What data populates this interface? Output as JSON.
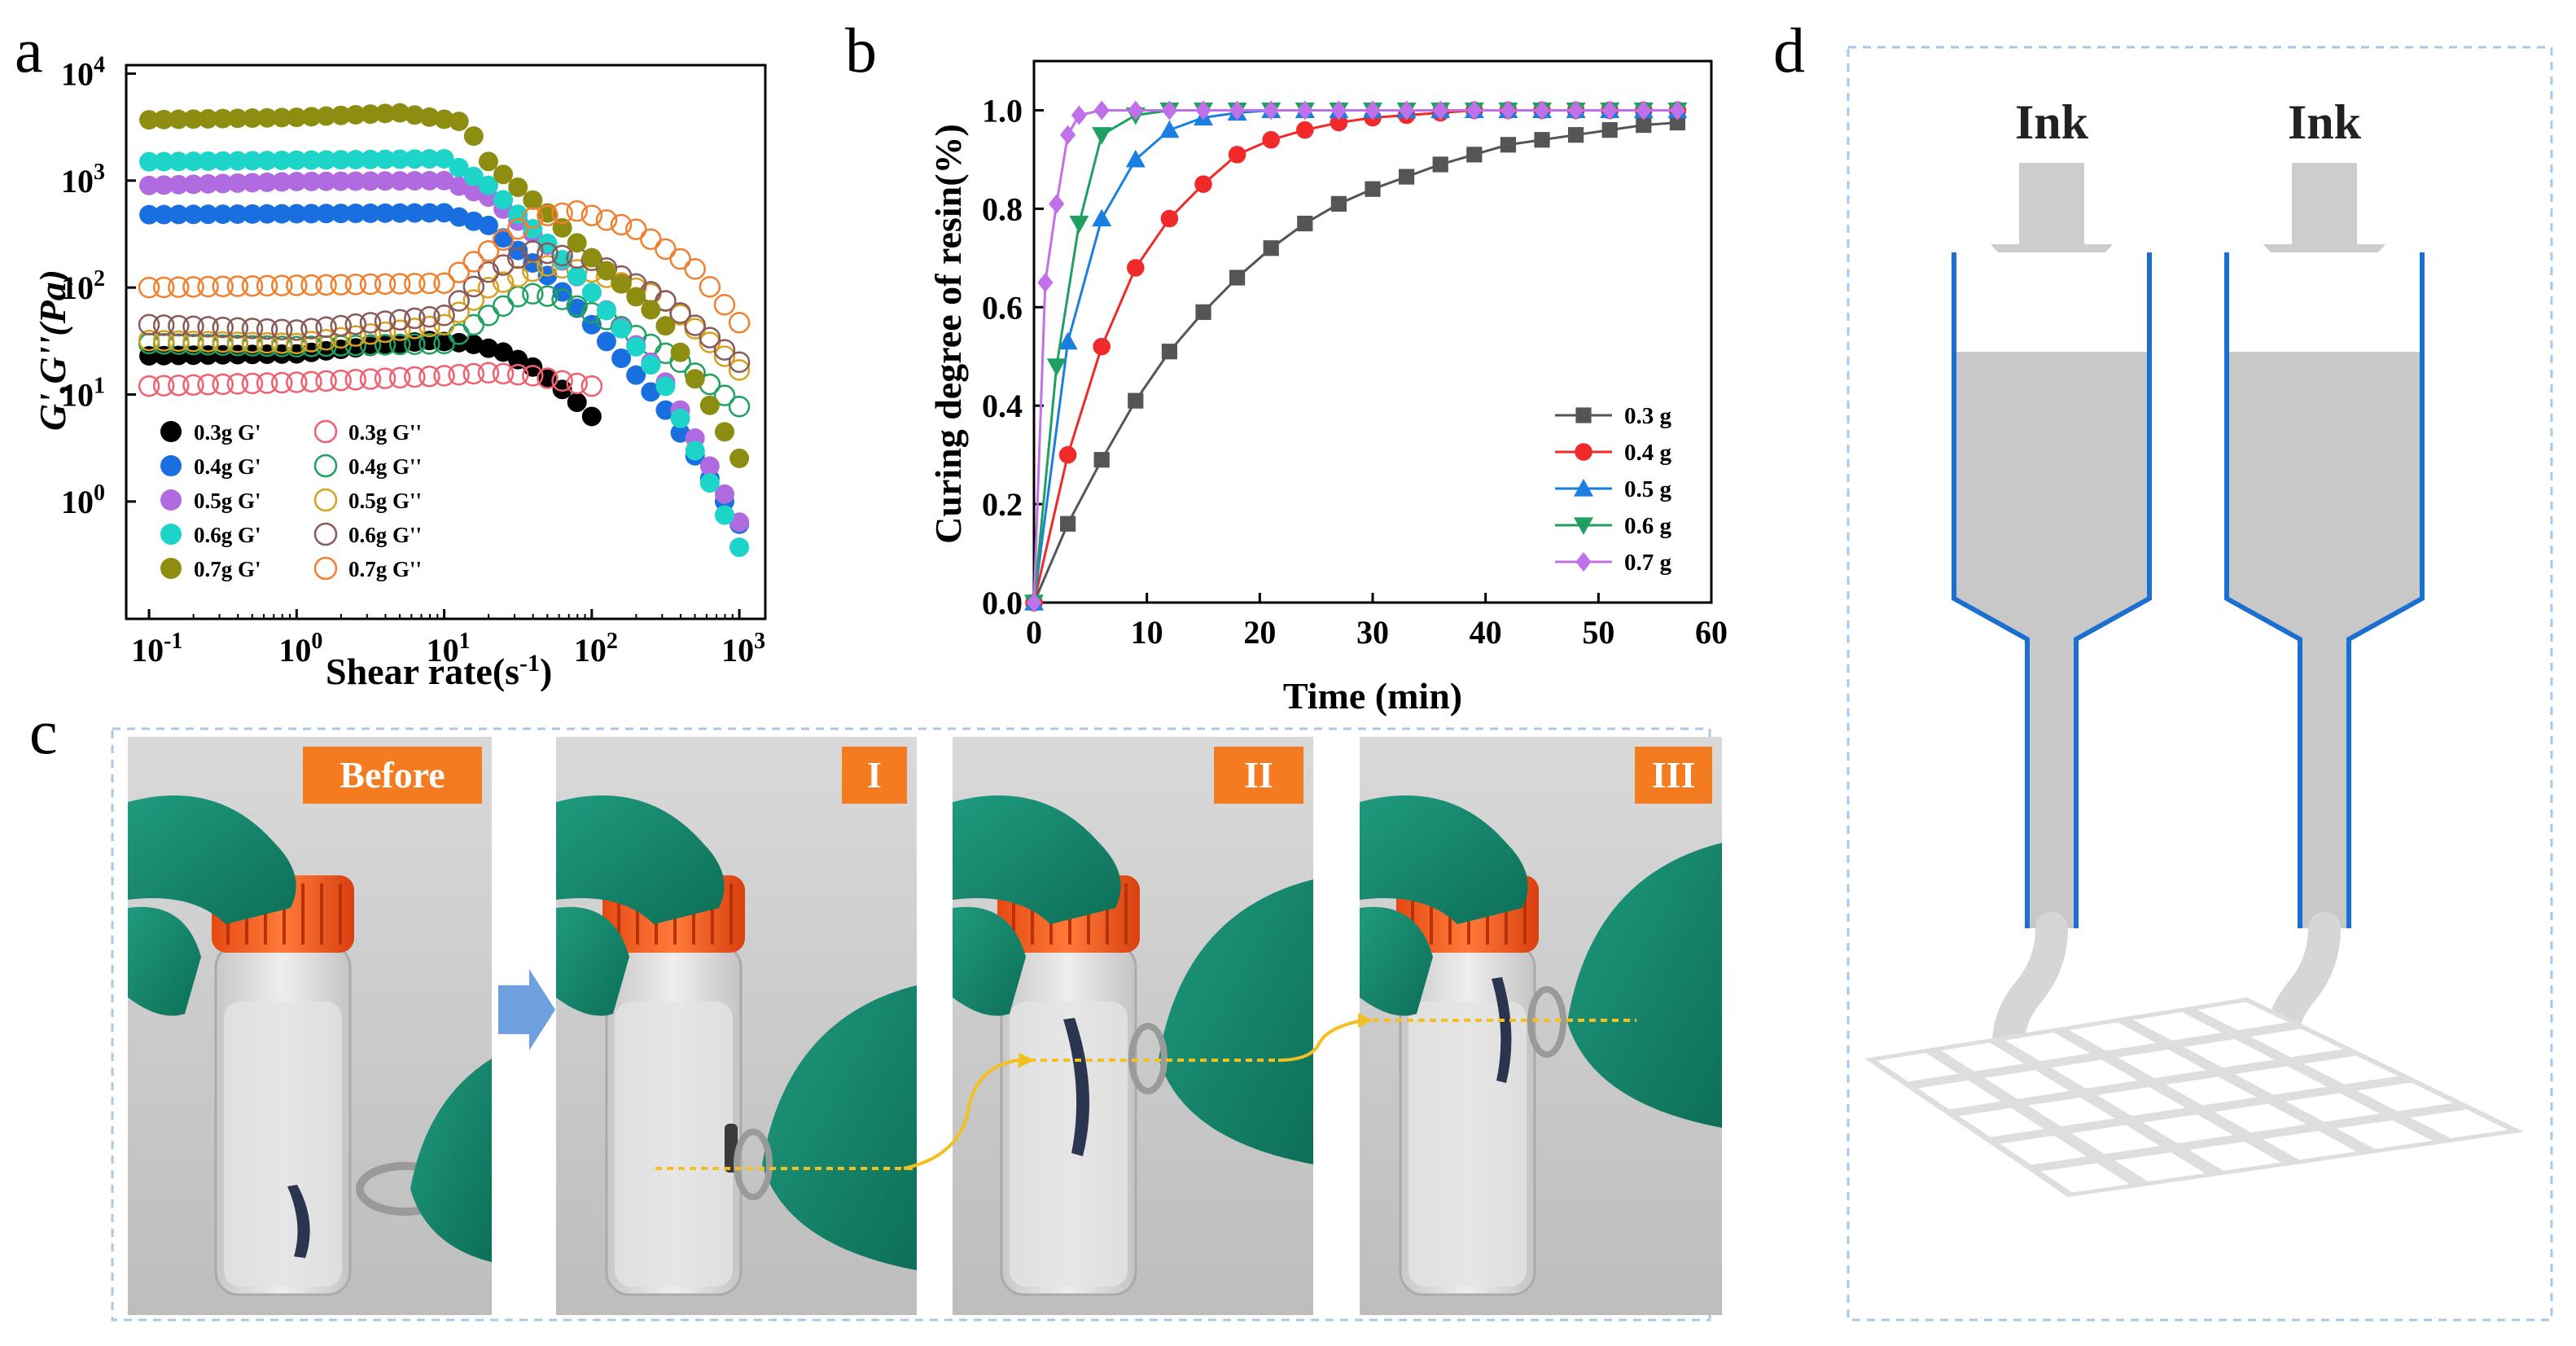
{
  "panel_labels": {
    "a": "a",
    "b": "b",
    "c": "c",
    "d": "d"
  },
  "colors": {
    "G03": "#000000",
    "G04": "#1a6fe0",
    "G05": "#b06be0",
    "G06": "#1cd5c8",
    "G07": "#8d8d12",
    "H03": "#f06070",
    "H04": "#20a060",
    "H05": "#d8a020",
    "H06": "#8a5a5a",
    "H07": "#f08030",
    "c03": "#555555",
    "c04": "#f02a2a",
    "c05": "#1a7fe0",
    "c06": "#20a060",
    "c07": "#c070e8",
    "tag": "#f47b20",
    "arrow_blue": "#6fa0e0",
    "dash_yellow": "#f2c020",
    "nozzle_blue": "#1a6fd0",
    "dash_border": "#a8c8e8"
  },
  "chart_data": [
    {
      "id": "a",
      "type": "scatter",
      "xscale": "log",
      "yscale": "log",
      "xlabel_main": "Shear rate(s",
      "xlabel_sup": "-1",
      "xlabel_end": ")",
      "ylabel": "G',G''(Pa)",
      "xlim": [
        0.07,
        1500
      ],
      "ylim": [
        0.08,
        12000
      ],
      "xticks": [
        {
          "v": 0.1,
          "base": "10",
          "exp": "-1"
        },
        {
          "v": 1,
          "base": "10",
          "exp": "0"
        },
        {
          "v": 10,
          "base": "10",
          "exp": "1"
        },
        {
          "v": 100,
          "base": "10",
          "exp": "2"
        },
        {
          "v": 1000,
          "base": "10",
          "exp": "3"
        }
      ],
      "yticks": [
        {
          "v": 1,
          "base": "10",
          "exp": "0"
        },
        {
          "v": 10,
          "base": "10",
          "exp": "1"
        },
        {
          "v": 100,
          "base": "10",
          "exp": "2"
        },
        {
          "v": 1000,
          "base": "10",
          "exp": "3"
        },
        {
          "v": 10000,
          "base": "10",
          "exp": "4"
        }
      ],
      "series": [
        {
          "key": "G03",
          "name": "0.3g G'",
          "filled": true,
          "xmin": 0.1,
          "xmax": 110,
          "pts": [
            [
              0.1,
              23
            ],
            [
              1,
              24
            ],
            [
              3,
              28
            ],
            [
              8,
              32
            ],
            [
              15,
              30
            ],
            [
              25,
              25
            ],
            [
              40,
              18
            ],
            [
              70,
              10
            ],
            [
              110,
              5.5
            ]
          ]
        },
        {
          "key": "H03",
          "name": "0.3g G''",
          "filled": false,
          "xmin": 0.1,
          "xmax": 100,
          "pts": [
            [
              0.1,
              12
            ],
            [
              1,
              13
            ],
            [
              10,
              15
            ],
            [
              20,
              16
            ],
            [
              40,
              15
            ],
            [
              100,
              12
            ]
          ]
        },
        {
          "key": "G04",
          "name": "0.4g G'",
          "filled": true,
          "xmin": 0.1,
          "xmax": 1100,
          "pts": [
            [
              0.1,
              480
            ],
            [
              1,
              490
            ],
            [
              10,
              500
            ],
            [
              20,
              380
            ],
            [
              50,
              130
            ],
            [
              100,
              45
            ],
            [
              300,
              8
            ],
            [
              1100,
              0.5
            ]
          ]
        },
        {
          "key": "H04",
          "name": "0.4g G''",
          "filled": false,
          "xmin": 0.1,
          "xmax": 1100,
          "pts": [
            [
              0.1,
              30
            ],
            [
              1,
              28
            ],
            [
              10,
              30
            ],
            [
              20,
              55
            ],
            [
              35,
              90
            ],
            [
              60,
              80
            ],
            [
              150,
              45
            ],
            [
              400,
              20
            ],
            [
              1100,
              7
            ]
          ]
        },
        {
          "key": "G05",
          "name": "0.5g G'",
          "filled": true,
          "xmin": 0.1,
          "xmax": 1100,
          "pts": [
            [
              0.1,
              900
            ],
            [
              1,
              980
            ],
            [
              10,
              1000
            ],
            [
              20,
              700
            ],
            [
              50,
              250
            ],
            [
              100,
              90
            ],
            [
              300,
              15
            ],
            [
              1100,
              0.5
            ]
          ]
        },
        {
          "key": "H05",
          "name": "0.5g G''",
          "filled": false,
          "xmin": 0.1,
          "xmax": 1100,
          "pts": [
            [
              0.1,
              32
            ],
            [
              1,
              30
            ],
            [
              10,
              45
            ],
            [
              20,
              100
            ],
            [
              50,
              160
            ],
            [
              100,
              140
            ],
            [
              300,
              80
            ],
            [
              1100,
              15
            ]
          ]
        },
        {
          "key": "G06",
          "name": "0.6g G'",
          "filled": true,
          "xmin": 0.1,
          "xmax": 1100,
          "pts": [
            [
              0.1,
              1500
            ],
            [
              1,
              1550
            ],
            [
              10,
              1600
            ],
            [
              20,
              900
            ],
            [
              50,
              260
            ],
            [
              100,
              90
            ],
            [
              300,
              14
            ],
            [
              1100,
              0.28
            ]
          ]
        },
        {
          "key": "H06",
          "name": "0.6g G''",
          "filled": false,
          "xmin": 0.1,
          "xmax": 1100,
          "pts": [
            [
              0.1,
              45
            ],
            [
              1,
              40
            ],
            [
              10,
              55
            ],
            [
              20,
              140
            ],
            [
              40,
              220
            ],
            [
              100,
              180
            ],
            [
              300,
              80
            ],
            [
              1100,
              18
            ]
          ]
        },
        {
          "key": "G07",
          "name": "0.7g G'",
          "filled": true,
          "xmin": 0.1,
          "xmax": 1100,
          "pts": [
            [
              0.1,
              3700
            ],
            [
              1,
              3900
            ],
            [
              5,
              4300
            ],
            [
              14,
              3500
            ],
            [
              20,
              1500
            ],
            [
              50,
              500
            ],
            [
              100,
              190
            ],
            [
              300,
              50
            ],
            [
              1100,
              2
            ]
          ]
        },
        {
          "key": "H07",
          "name": "0.7g G''",
          "filled": false,
          "xmin": 0.1,
          "xmax": 1100,
          "pts": [
            [
              0.1,
              100
            ],
            [
              1,
              105
            ],
            [
              10,
              110
            ],
            [
              20,
              220
            ],
            [
              40,
              450
            ],
            [
              80,
              520
            ],
            [
              200,
              350
            ],
            [
              500,
              150
            ],
            [
              1100,
              40
            ]
          ]
        }
      ]
    },
    {
      "id": "b",
      "type": "line",
      "xlabel": "Time (min)",
      "ylabel": "Curing degree of resin(%)",
      "xlim": [
        0,
        60
      ],
      "ylim": [
        0,
        1.1
      ],
      "xticks": [
        0,
        10,
        20,
        30,
        40,
        50,
        60
      ],
      "yticks": [
        0.0,
        0.2,
        0.4,
        0.6,
        0.8,
        1.0
      ],
      "ytick_labels": [
        "0.0",
        "0.2",
        "0.4",
        "0.6",
        "0.8",
        "1.0"
      ],
      "series": [
        {
          "key": "c03",
          "name": "0.3 g",
          "marker": "square",
          "x": [
            0,
            3,
            6,
            9,
            12,
            15,
            18,
            21,
            24,
            27,
            30,
            33,
            36,
            39,
            42,
            45,
            48,
            51,
            54,
            57
          ],
          "y": [
            0,
            0.16,
            0.29,
            0.41,
            0.51,
            0.59,
            0.66,
            0.72,
            0.77,
            0.81,
            0.84,
            0.865,
            0.89,
            0.91,
            0.93,
            0.94,
            0.95,
            0.96,
            0.97,
            0.975
          ]
        },
        {
          "key": "c04",
          "name": "0.4 g",
          "marker": "circle",
          "x": [
            0,
            3,
            6,
            9,
            12,
            15,
            18,
            21,
            24,
            27,
            30,
            33,
            36,
            39,
            42,
            45,
            48,
            51,
            54,
            57
          ],
          "y": [
            0,
            0.3,
            0.52,
            0.68,
            0.78,
            0.85,
            0.91,
            0.94,
            0.96,
            0.975,
            0.985,
            0.99,
            0.995,
            1.0,
            1.0,
            1.0,
            1.0,
            1.0,
            1.0,
            1.0
          ]
        },
        {
          "key": "c05",
          "name": "0.5 g",
          "marker": "triangle-up",
          "x": [
            0,
            3,
            6,
            9,
            12,
            15,
            18,
            21,
            24,
            27,
            30,
            33,
            36,
            39,
            42,
            45,
            48,
            51,
            54,
            57
          ],
          "y": [
            0,
            0.53,
            0.78,
            0.9,
            0.96,
            0.985,
            0.995,
            1.0,
            1.0,
            1.0,
            1.0,
            1.0,
            1.0,
            1.0,
            1.0,
            1.0,
            1.0,
            1.0,
            1.0,
            1.0
          ]
        },
        {
          "key": "c06",
          "name": "0.6 g",
          "marker": "triangle-down",
          "x": [
            0,
            2,
            4,
            6,
            9,
            12,
            15,
            18,
            21,
            24,
            27,
            30,
            33,
            36,
            39,
            42,
            45,
            48,
            51,
            54,
            57
          ],
          "y": [
            0,
            0.48,
            0.77,
            0.95,
            0.99,
            1.0,
            1.0,
            1.0,
            1.0,
            1.0,
            1.0,
            1.0,
            1.0,
            1.0,
            1.0,
            1.0,
            1.0,
            1.0,
            1.0,
            1.0,
            1.0
          ]
        },
        {
          "key": "c07",
          "name": "0.7 g",
          "marker": "diamond",
          "x": [
            0,
            1,
            2,
            3,
            4,
            6,
            9,
            12,
            15,
            18,
            21,
            24,
            27,
            30,
            33,
            36,
            39,
            42,
            45,
            48,
            51,
            54,
            57
          ],
          "y": [
            0,
            0.65,
            0.81,
            0.95,
            0.99,
            1.0,
            1.0,
            1.0,
            1.0,
            1.0,
            1.0,
            1.0,
            1.0,
            1.0,
            1.0,
            1.0,
            1.0,
            1.0,
            1.0,
            1.0,
            1.0,
            1.0,
            1.0
          ]
        }
      ]
    }
  ],
  "panel_c": {
    "photos": [
      {
        "tag": "Before",
        "label_name": "photo-before"
      },
      {
        "tag": "I",
        "label_name": "photo-I"
      },
      {
        "tag": "II",
        "label_name": "photo-II"
      },
      {
        "tag": "III",
        "label_name": "photo-III"
      }
    ]
  },
  "panel_d": {
    "ink_left": "Ink",
    "ink_right": "Ink"
  }
}
